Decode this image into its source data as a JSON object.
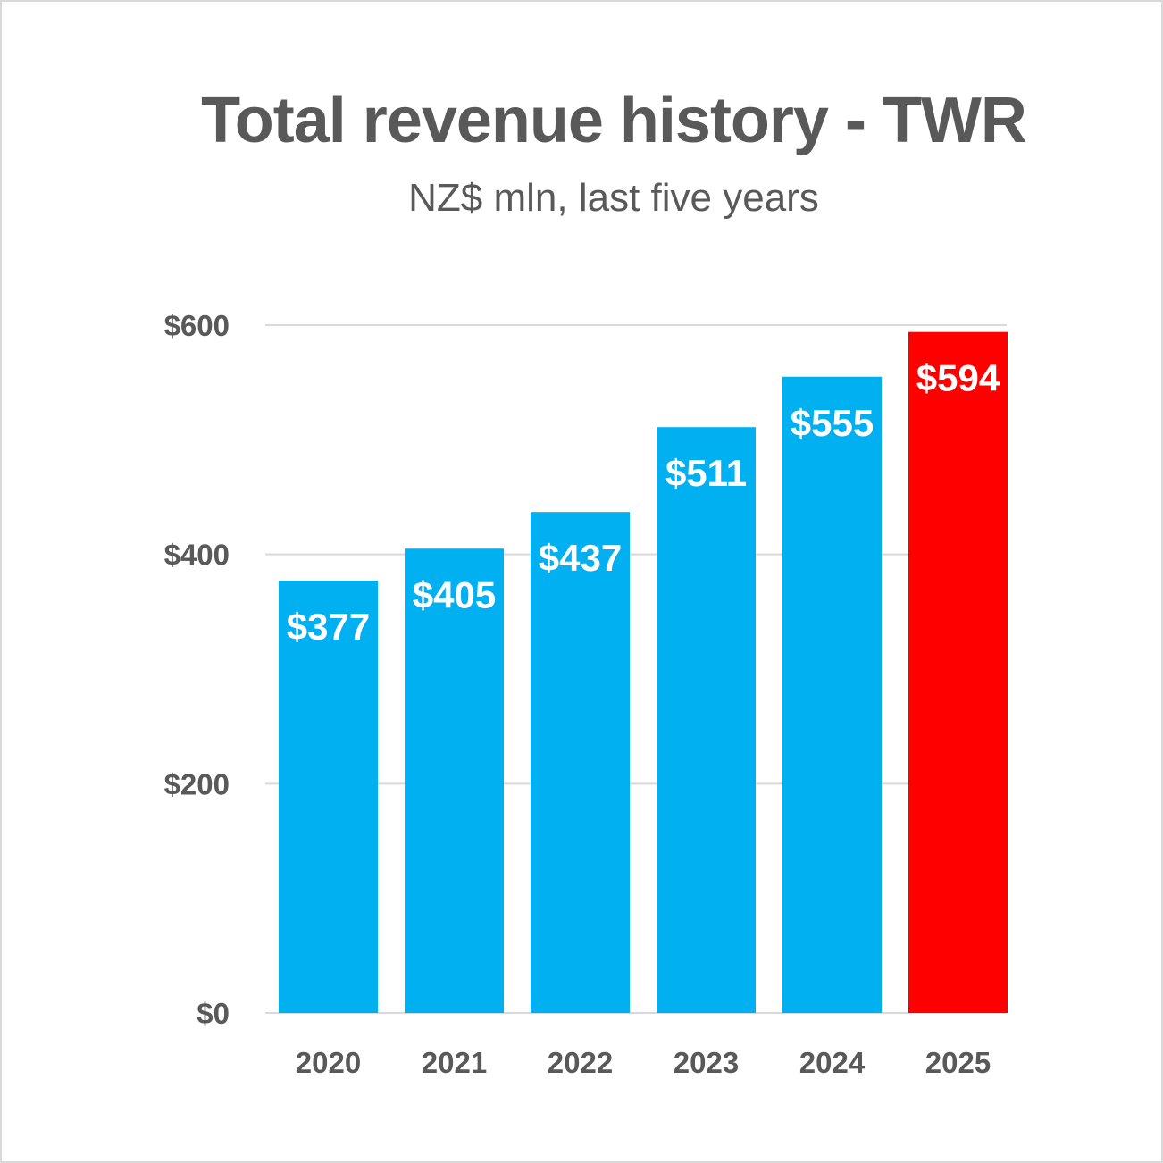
{
  "chart_data": {
    "type": "bar",
    "title": "Total revenue history - TWR",
    "subtitle": "NZ$ mln, last five years",
    "categories": [
      "2020",
      "2021",
      "2022",
      "2023",
      "2024",
      "2025"
    ],
    "values": [
      377,
      405,
      437,
      511,
      555,
      594
    ],
    "data_labels": [
      "$377",
      "$405",
      "$437",
      "$511",
      "$555",
      "$594"
    ],
    "ylim": [
      0,
      600
    ],
    "yticks": [
      0,
      200,
      400,
      600
    ],
    "ytick_labels": [
      "$0",
      "$200",
      "$400",
      "$600"
    ],
    "grid": true,
    "colors": {
      "default": "#00B0F0",
      "highlight": "#FF0000",
      "grid": "#d9d9d9",
      "text": "#595959"
    },
    "highlight_index": 5
  }
}
